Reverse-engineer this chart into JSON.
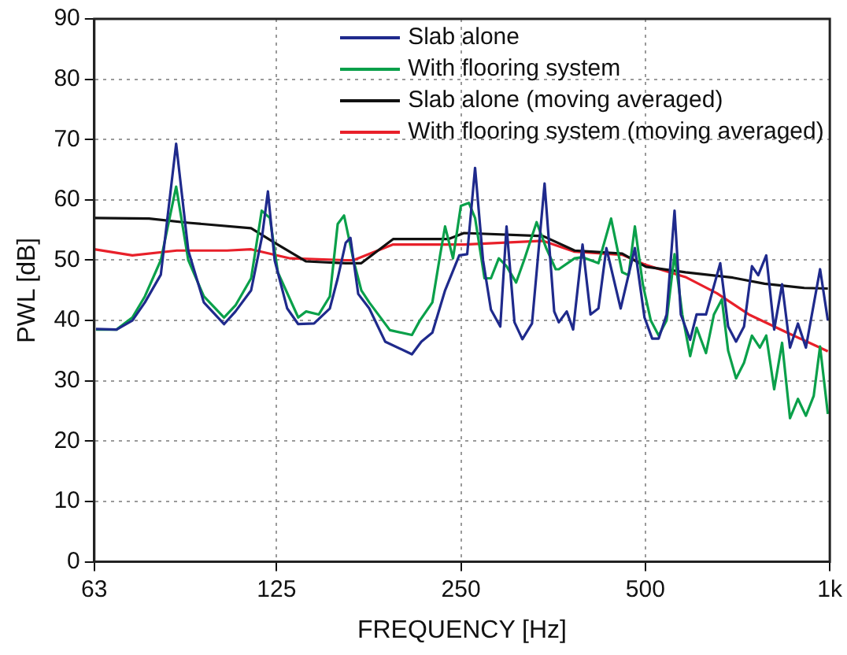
{
  "chart_data": {
    "type": "line",
    "xlabel": "FREQUENCY [Hz]",
    "ylabel": "PWL [dB]",
    "log": "x",
    "grid": true,
    "legend": "top right",
    "marker": "none",
    "line_style": "solid",
    "xlim": [
      63,
      1000
    ],
    "xticks": [
      63,
      125,
      250,
      500,
      {
        "value": 1000,
        "label": "1k"
      }
    ],
    "ylim": [
      0,
      90
    ],
    "yticks": [
      0,
      10,
      20,
      30,
      40,
      50,
      60,
      70,
      80,
      90
    ],
    "series": [
      {
        "name": "Slab alone",
        "color": "#1f2a8c",
        "x": [
          63.4,
          68.5,
          72.7,
          76.2,
          80.9,
          85.7,
          89.7,
          95.1,
          102.6,
          107.1,
          113.6,
          118.4,
          121,
          124.1,
          130.1,
          135.6,
          143.9,
          152.7,
          157.3,
          162.1,
          165,
          169.9,
          177.1,
          188,
          207.9,
          215.4,
          224.5,
          235.5,
          248.4,
          255.9,
          263.6,
          271.6,
          279.8,
          289.8,
          296.7,
          305.7,
          314.9,
          326.5,
          342.3,
          354.9,
          361.1,
          372,
          381.1,
          394.8,
          406.8,
          419.1,
          431.8,
          455.6,
          480.6,
          498.3,
          513,
          525.6,
          541.5,
          557.9,
          571.2,
          591.6,
          606.1,
          627.9,
          662.4,
          682.4,
          703,
          724.4,
          746.3,
          764.1,
          787.5,
          811.3,
          835.8,
          861.1,
          887.2,
          914,
          964.1,
          992.7
        ],
        "values": [
          38.6,
          38.5,
          40,
          43,
          47.6,
          69.3,
          51.6,
          43,
          39.4,
          41.5,
          45,
          54,
          61.4,
          50,
          42,
          39.4,
          39.5,
          42,
          47,
          52.9,
          53.7,
          44.4,
          42,
          36.5,
          34.4,
          36.5,
          38,
          45,
          50.8,
          51,
          65.3,
          50,
          41.8,
          39,
          55.6,
          39.7,
          36.9,
          39.5,
          62.7,
          41.5,
          39.7,
          41.5,
          38.5,
          52.6,
          41,
          42,
          52,
          42,
          52,
          40.5,
          37,
          37,
          41,
          58.2,
          41,
          36.8,
          41,
          41,
          49.5,
          39,
          36.5,
          39,
          49,
          47.5,
          50.8,
          38.5,
          46,
          35.5,
          39.5,
          35.5,
          48.5,
          40
        ]
      },
      {
        "name": "With flooring system",
        "color": "#0aa04a",
        "x": [
          63.4,
          68.5,
          72.7,
          76.2,
          80.9,
          85.7,
          89.7,
          95.1,
          102.6,
          107.1,
          113.6,
          118.2,
          121.9,
          125.6,
          135.6,
          139.7,
          146.5,
          152.7,
          157.3,
          161.1,
          166.9,
          171.9,
          177.1,
          191.4,
          207.9,
          214.2,
          224.5,
          231.3,
          235.5,
          242.6,
          249.9,
          257.5,
          263.6,
          273.1,
          279.8,
          288.2,
          296.7,
          307.6,
          316.9,
          332.2,
          344.4,
          356.9,
          361.1,
          383.2,
          394.8,
          419.1,
          439.5,
          458.2,
          469.4,
          480.6,
          495.2,
          510.2,
          525.6,
          541.5,
          557.9,
          574.4,
          591.6,
          606.1,
          627.9,
          646.9,
          666.5,
          682.4,
          703,
          724.4,
          746.3,
          768.9,
          787.5,
          811.3,
          835.8,
          861.1,
          887.2,
          914,
          941.3,
          964.1,
          992.7
        ],
        "values": [
          38.5,
          38.5,
          40.5,
          44,
          50,
          62.2,
          50,
          44,
          40.5,
          42.5,
          47,
          58.2,
          57,
          48,
          40.5,
          41.5,
          41,
          44,
          56,
          57.4,
          50,
          45,
          43,
          38.4,
          37.6,
          40,
          43,
          51,
          55.6,
          50.3,
          59,
          59.5,
          57,
          47,
          47,
          50.3,
          49,
          46.3,
          50,
          56.3,
          52,
          48.5,
          48.5,
          50.3,
          50.5,
          49.5,
          56.9,
          48,
          47.5,
          55.6,
          46,
          40,
          37.5,
          40,
          51,
          41,
          34.1,
          38.8,
          34.6,
          41,
          43.5,
          35,
          30.4,
          33,
          37.5,
          35.5,
          37.5,
          28.6,
          36.3,
          23.8,
          27,
          24.2,
          27.5,
          35.7,
          24.5
        ]
      },
      {
        "name": "Slab alone (moving averaged)",
        "color": "#111111",
        "x": [
          63,
          77.4,
          89.7,
          113.6,
          124.1,
          139.7,
          162.1,
          171.9,
          193.7,
          238.3,
          252.9,
          340.4,
          383.2,
          458.2,
          501.1,
          581.4,
          694.8,
          782.6,
          908.4,
          992.7
        ],
        "values": [
          57,
          56.9,
          56.2,
          55.3,
          52.9,
          49.8,
          49.5,
          49.5,
          53.5,
          53.5,
          54.5,
          54,
          51.6,
          51.1,
          48.9,
          48,
          47.1,
          46.1,
          45.4,
          45.3
        ]
      },
      {
        "name": "With flooring system (moving averaged)",
        "color": "#e8202a",
        "x": [
          63,
          72.7,
          85.9,
          103.8,
          113.6,
          131.6,
          162.1,
          166.9,
          193.7,
          252.9,
          340.4,
          383.2,
          458.2,
          501.1,
          581.4,
          654.6,
          737.6,
          855.8,
          992.7
        ],
        "values": [
          51.8,
          50.8,
          51.6,
          51.6,
          51.8,
          50.3,
          50,
          50,
          52.6,
          52.6,
          53.2,
          51.4,
          50.9,
          49.2,
          47.2,
          44.5,
          41,
          37.9,
          34.9
        ]
      }
    ]
  }
}
